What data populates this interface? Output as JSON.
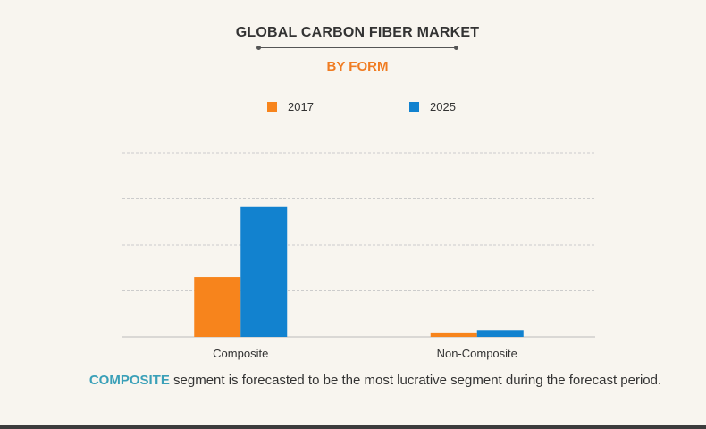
{
  "chart_data": {
    "type": "bar",
    "title": "GLOBAL CARBON FIBER MARKET",
    "subtitle": "BY FORM",
    "categories": [
      "Composite",
      "Non-Composite"
    ],
    "series": [
      {
        "name": "2017",
        "values": [
          1.3,
          0.08
        ],
        "color": "#f7841c"
      },
      {
        "name": "2025",
        "values": [
          2.82,
          0.15
        ],
        "color": "#1282cf"
      }
    ],
    "ylim": [
      0,
      4
    ],
    "yticks": [
      0,
      1,
      2,
      3,
      4
    ],
    "ytick_labels_shown": false,
    "grid": true,
    "legend_position": "top"
  },
  "footnote": {
    "highlight": "COMPOSITE",
    "text": " segment is forecasted to be the most lucrative segment during the forecast period."
  },
  "colors": {
    "background": "#f8f5ef",
    "title": "#333333",
    "subtitle": "#f07c22",
    "highlight": "#3aa0b8",
    "grid": "#cccccc"
  }
}
